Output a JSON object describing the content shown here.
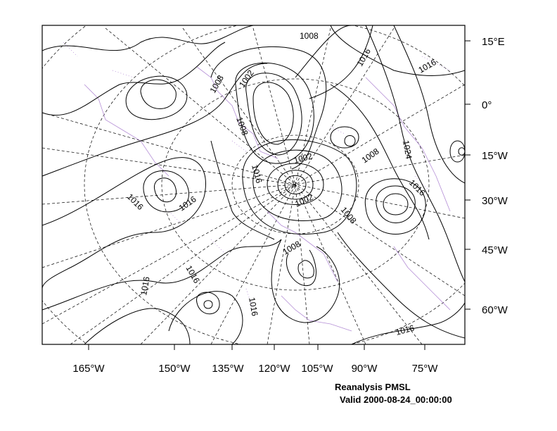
{
  "map": {
    "caption_line1": "Reanalysis PMSL",
    "caption_line2": "Valid 2000-08-24_00:00:00",
    "right_axis_labels": [
      "15°E",
      "0°",
      "15°W",
      "30°W",
      "45°W",
      "60°W"
    ],
    "bottom_axis_labels": [
      "165°W",
      "150°W",
      "135°W",
      "120°W",
      "105°W",
      "90°W",
      "75°W"
    ],
    "contour_labels": [
      "1008",
      "1016",
      "1016",
      "1008",
      "1002",
      "1008",
      "1016",
      "1002",
      "1008",
      "1024",
      "1016",
      "1016",
      "1016",
      "1002",
      "1008",
      "1008",
      "1016",
      "1016",
      "1016",
      "1016"
    ],
    "colors": {
      "contour": "#000000",
      "coastline": "#b58fd6",
      "graticule": "#000000"
    }
  }
}
